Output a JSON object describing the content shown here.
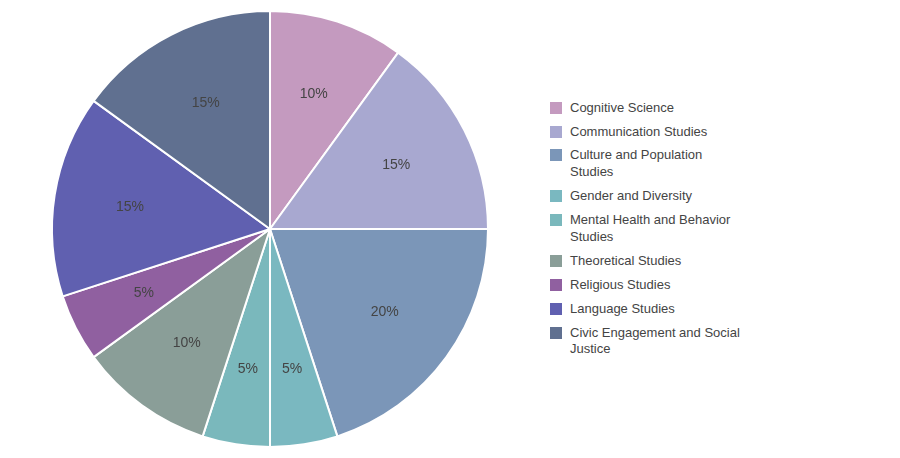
{
  "chart_data": {
    "type": "pie",
    "categories": [
      "Cognitive Science",
      "Communication Studies",
      "Culture and Population\nStudies",
      "Gender and Diversity",
      "Mental Health and Behavior\nStudies",
      "Theoretical Studies",
      "Religious Studies",
      "Language Studies",
      "Civic Engagement and Social\nJustice"
    ],
    "values": [
      10,
      15,
      20,
      5,
      5,
      10,
      5,
      15,
      15
    ],
    "value_labels": [
      "10%",
      "15%",
      "20%",
      "5%",
      "5%",
      "10%",
      "5%",
      "15%",
      "15%"
    ],
    "colors": [
      "#c49abf",
      "#a8a8d0",
      "#7b96b8",
      "#7ab8c0",
      "#7ab8bc",
      "#8a9e98",
      "#9060a0",
      "#6060b0",
      "#607090"
    ],
    "data_labels": true,
    "legend": "right"
  }
}
